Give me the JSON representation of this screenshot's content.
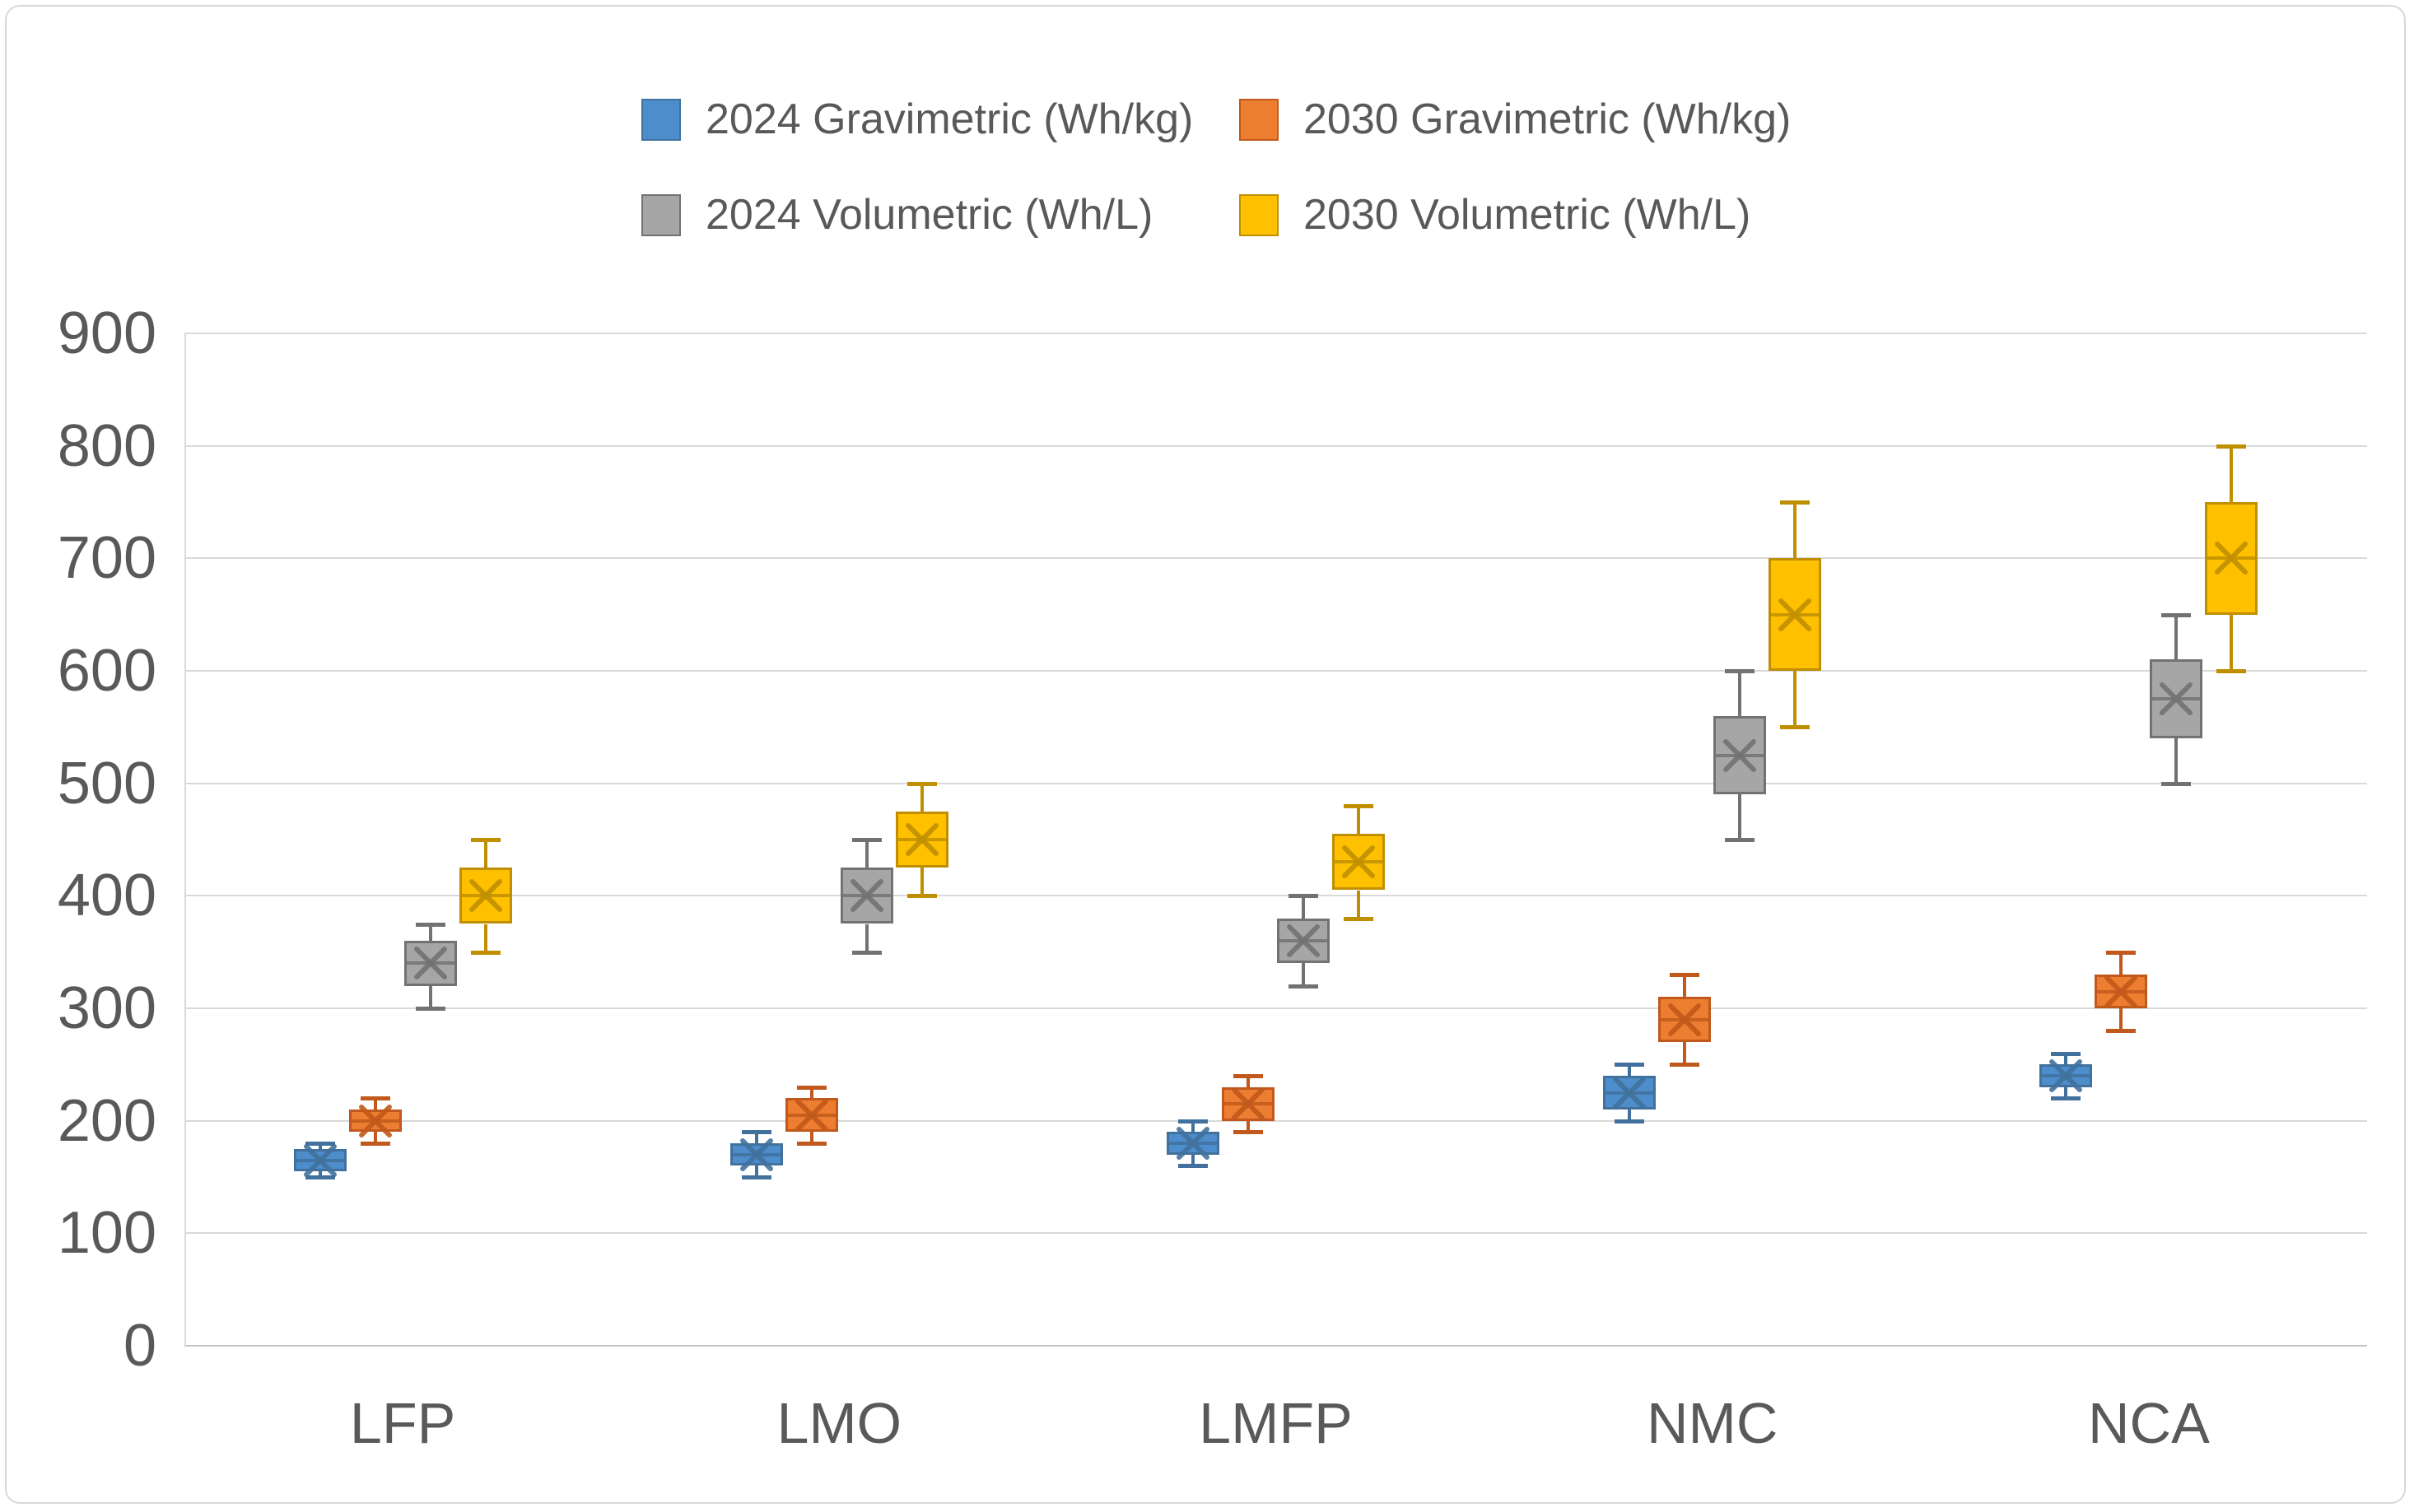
{
  "chart": {
    "background": "#FFFFFF",
    "frame_border_color": "#D8D8D8",
    "grid_color": "#D9D9D9",
    "axis_line_color": "#C3C3C3",
    "text_color": "#595959"
  },
  "legend": {
    "items": [
      {
        "label": "2024 Gravimetric (Wh/kg)",
        "series_index": 0
      },
      {
        "label": "2030 Gravimetric (Wh/kg)",
        "series_index": 1
      },
      {
        "label": "2024 Volumetric (Wh/L)",
        "series_index": 2
      },
      {
        "label": "2030 Volumetric (Wh/L)",
        "series_index": 3
      }
    ]
  },
  "chart_data": {
    "type": "box",
    "title": "",
    "xlabel": "",
    "ylabel": "",
    "categories": [
      "LFP",
      "LMO",
      "LMFP",
      "NMC",
      "NCA"
    ],
    "y_axis": {
      "min": 0,
      "max": 900,
      "step": 100,
      "ticks": [
        900,
        800,
        700,
        600,
        500,
        400,
        300,
        200,
        100,
        0
      ]
    },
    "grid": "horizontal",
    "legend_position": "top",
    "series": [
      {
        "name": "2024 Gravimetric (Wh/kg)",
        "fill": "#4D8DCB",
        "line": "#41719C",
        "stats": [
          {
            "category": "LFP",
            "min": 150,
            "q1": 155,
            "median": 165,
            "q3": 175,
            "max": 180,
            "mean": 165
          },
          {
            "category": "LMO",
            "min": 150,
            "q1": 160,
            "median": 170,
            "q3": 180,
            "max": 190,
            "mean": 170
          },
          {
            "category": "LMFP",
            "min": 160,
            "q1": 170,
            "median": 180,
            "q3": 190,
            "max": 200,
            "mean": 180
          },
          {
            "category": "NMC",
            "min": 200,
            "q1": 210,
            "median": 225,
            "q3": 240,
            "max": 250,
            "mean": 225
          },
          {
            "category": "NCA",
            "min": 220,
            "q1": 230,
            "median": 240,
            "q3": 250,
            "max": 260,
            "mean": 240
          }
        ]
      },
      {
        "name": "2030 Gravimetric (Wh/kg)",
        "fill": "#ED7D31",
        "line": "#C0591B",
        "stats": [
          {
            "category": "LFP",
            "min": 180,
            "q1": 190,
            "median": 200,
            "q3": 210,
            "max": 220,
            "mean": 200
          },
          {
            "category": "LMO",
            "min": 180,
            "q1": 190,
            "median": 205,
            "q3": 220,
            "max": 230,
            "mean": 205
          },
          {
            "category": "LMFP",
            "min": 190,
            "q1": 200,
            "median": 215,
            "q3": 230,
            "max": 240,
            "mean": 215
          },
          {
            "category": "NMC",
            "min": 250,
            "q1": 270,
            "median": 290,
            "q3": 310,
            "max": 330,
            "mean": 290
          },
          {
            "category": "NCA",
            "min": 280,
            "q1": 300,
            "median": 315,
            "q3": 330,
            "max": 350,
            "mean": 315
          }
        ]
      },
      {
        "name": "2024 Volumetric (Wh/L)",
        "fill": "#A6A6A6",
        "line": "#727272",
        "stats": [
          {
            "category": "LFP",
            "min": 300,
            "q1": 320,
            "median": 340,
            "q3": 360,
            "max": 375,
            "mean": 340
          },
          {
            "category": "LMO",
            "min": 350,
            "q1": 375,
            "median": 400,
            "q3": 425,
            "max": 450,
            "mean": 400
          },
          {
            "category": "LMFP",
            "min": 320,
            "q1": 340,
            "median": 360,
            "q3": 380,
            "max": 400,
            "mean": 360
          },
          {
            "category": "NMC",
            "min": 450,
            "q1": 490,
            "median": 525,
            "q3": 560,
            "max": 600,
            "mean": 525
          },
          {
            "category": "NCA",
            "min": 500,
            "q1": 540,
            "median": 575,
            "q3": 610,
            "max": 650,
            "mean": 575
          }
        ]
      },
      {
        "name": "2030 Volumetric (Wh/L)",
        "fill": "#FFC000",
        "line": "#BF8F00",
        "stats": [
          {
            "category": "LFP",
            "min": 350,
            "q1": 375,
            "median": 400,
            "q3": 425,
            "max": 450,
            "mean": 400
          },
          {
            "category": "LMO",
            "min": 400,
            "q1": 425,
            "median": 450,
            "q3": 475,
            "max": 500,
            "mean": 450
          },
          {
            "category": "LMFP",
            "min": 380,
            "q1": 405,
            "median": 430,
            "q3": 455,
            "max": 480,
            "mean": 430
          },
          {
            "category": "NMC",
            "min": 550,
            "q1": 600,
            "median": 650,
            "q3": 700,
            "max": 750,
            "mean": 650
          },
          {
            "category": "NCA",
            "min": 600,
            "q1": 650,
            "median": 700,
            "q3": 750,
            "max": 800,
            "mean": 700
          }
        ]
      }
    ]
  }
}
